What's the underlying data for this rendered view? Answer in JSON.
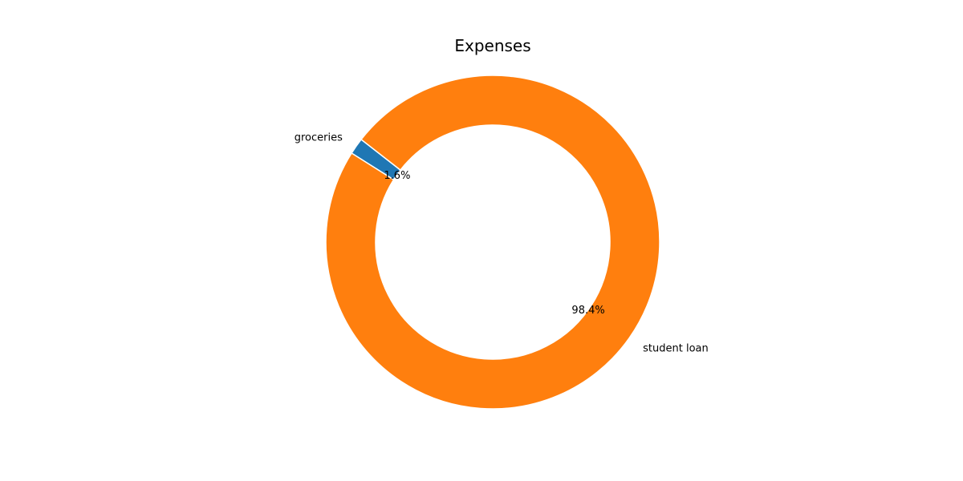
{
  "chart_data": {
    "type": "pie",
    "variant": "donut",
    "title": "Expenses",
    "categories": [
      "groceries",
      "student loan"
    ],
    "values": [
      1.6,
      98.4
    ],
    "value_labels": [
      "1.6%",
      "98.4%"
    ],
    "colors": [
      "#1f77b4",
      "#ff7f0e"
    ],
    "edge_color": "#ffffff",
    "legend": "none"
  }
}
